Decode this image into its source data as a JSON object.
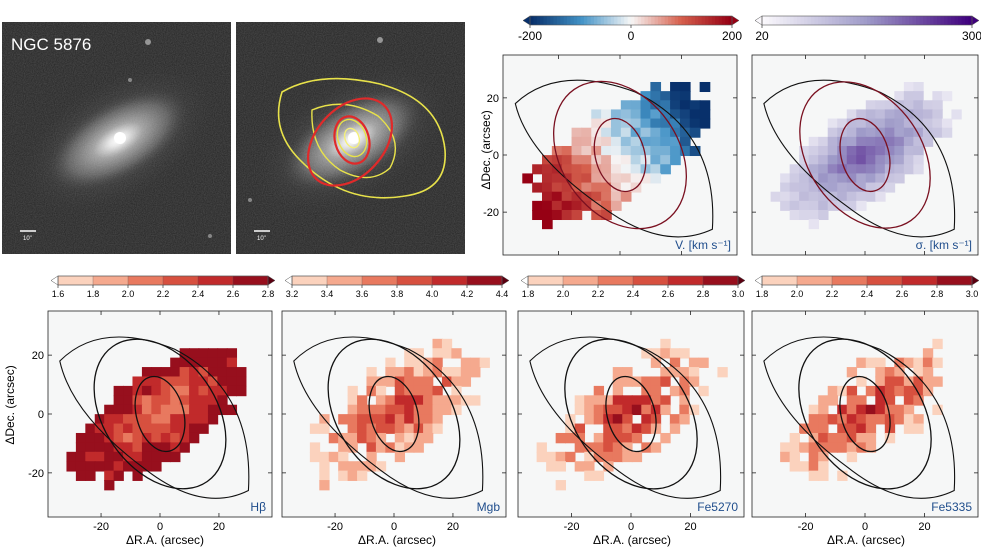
{
  "chart_data": {
    "type": "heatmap",
    "title": "NGC 5876",
    "xlabel": "ΔR.A. (arcsec)",
    "ylabel": "ΔDec. (arcsec)",
    "x_ticks": [
      -20,
      0,
      20
    ],
    "y_ticks": [
      20,
      0,
      -20
    ],
    "xlim": [
      -38,
      38
    ],
    "ylim": [
      -35,
      35
    ],
    "scalebar_label": "10\"",
    "panels": [
      {
        "id": "vel",
        "label": "V. [km s⁻¹]",
        "cmap": "diverging",
        "range": [
          -200,
          200
        ],
        "ticks": [
          -200,
          0,
          200
        ],
        "tick_labels": [
          "-200",
          "0",
          "200"
        ],
        "discrete_steps": 0
      },
      {
        "id": "sigma",
        "label": "σ. [km s⁻¹]",
        "cmap": "purple",
        "range": [
          20,
          300
        ],
        "ticks": [
          20,
          300
        ],
        "tick_labels": [
          "20",
          "300"
        ],
        "discrete_steps": 0
      },
      {
        "id": "hbeta",
        "label": "Hβ",
        "cmap": "reds",
        "range": [
          1.6,
          2.8
        ],
        "ticks": [
          1.6,
          1.8,
          2.0,
          2.2,
          2.4,
          2.6,
          2.8
        ],
        "tick_labels": [
          "1.6",
          "1.8",
          "2.0",
          "2.2",
          "2.4",
          "2.6",
          "2.8"
        ],
        "discrete_steps": 6
      },
      {
        "id": "mgb",
        "label": "Mgb",
        "cmap": "reds",
        "range": [
          3.2,
          4.4
        ],
        "ticks": [
          3.2,
          3.4,
          3.6,
          3.8,
          4.0,
          4.2,
          4.4
        ],
        "tick_labels": [
          "3.2",
          "3.4",
          "3.6",
          "3.8",
          "4.0",
          "4.2",
          "4.4"
        ],
        "discrete_steps": 6
      },
      {
        "id": "fe5270",
        "label": "Fe5270",
        "cmap": "reds",
        "range": [
          1.8,
          3.0
        ],
        "ticks": [
          1.8,
          2.0,
          2.2,
          2.4,
          2.6,
          2.8,
          3.0
        ],
        "tick_labels": [
          "1.8",
          "2.0",
          "2.2",
          "2.4",
          "2.6",
          "2.8",
          "3.0"
        ],
        "discrete_steps": 6
      },
      {
        "id": "fe5335",
        "label": "Fe5335",
        "cmap": "reds",
        "range": [
          1.8,
          3.0
        ],
        "ticks": [
          1.8,
          2.0,
          2.2,
          2.4,
          2.6,
          2.8,
          3.0
        ],
        "tick_labels": [
          "1.8",
          "2.0",
          "2.2",
          "2.4",
          "2.6",
          "2.8",
          "3.0"
        ],
        "discrete_steps": 6
      }
    ]
  }
}
